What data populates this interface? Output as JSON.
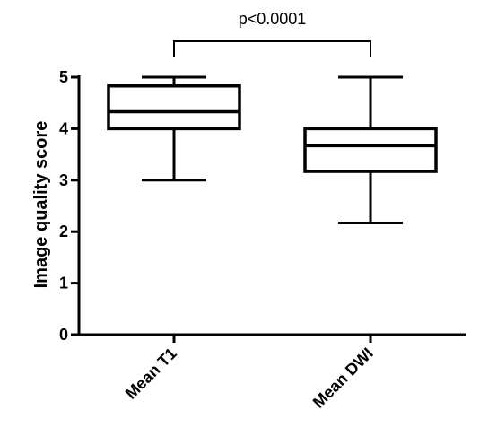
{
  "chart_data": {
    "type": "box",
    "title": "",
    "xlabel": "",
    "ylabel": "Image quality score",
    "ylim": [
      0,
      5
    ],
    "yticks": [
      "0",
      "1",
      "2",
      "3",
      "4",
      "5"
    ],
    "grid": false,
    "categories": [
      "Mean T1",
      "Mean DWI"
    ],
    "boxes": [
      {
        "category": "Mean T1",
        "min": 3.0,
        "q1": 4.0,
        "median": 4.33,
        "q3": 4.83,
        "max": 5.0
      },
      {
        "category": "Mean DWI",
        "min": 2.17,
        "q1": 3.17,
        "median": 3.67,
        "q3": 4.0,
        "max": 5.0
      }
    ],
    "annotation": "p<0.0001"
  }
}
